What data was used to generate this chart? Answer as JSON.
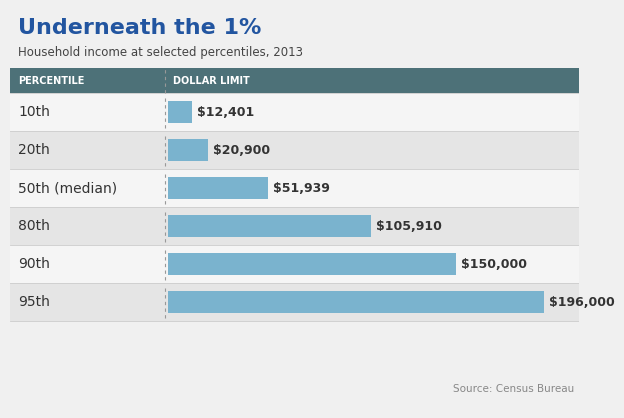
{
  "title": "Underneath the 1%",
  "subtitle": "Household income at selected percentiles, 2013",
  "source": "Source: Census Bureau",
  "col1_header": "PERCENTILE",
  "col2_header": "DOLLAR LIMIT",
  "categories": [
    "10th",
    "20th",
    "50th (median)",
    "80th",
    "90th",
    "95th"
  ],
  "values": [
    12401,
    20900,
    51939,
    105910,
    150000,
    196000
  ],
  "labels": [
    "$12,401",
    "$20,900",
    "$51,939",
    "$105,910",
    "$150,000",
    "$196,000"
  ],
  "bar_color": "#7ab3ce",
  "header_bg": "#4d7178",
  "header_text": "#ffffff",
  "title_color": "#2255a0",
  "subtitle_color": "#444444",
  "source_color": "#888888",
  "max_value": 210000,
  "fig_bg": "#f0f0f0",
  "row_bg_light": "#f5f5f5",
  "row_bg_dark": "#e5e5e5",
  "separator_color": "#cccccc",
  "label_color": "#333333",
  "dashed_color": "#999999"
}
